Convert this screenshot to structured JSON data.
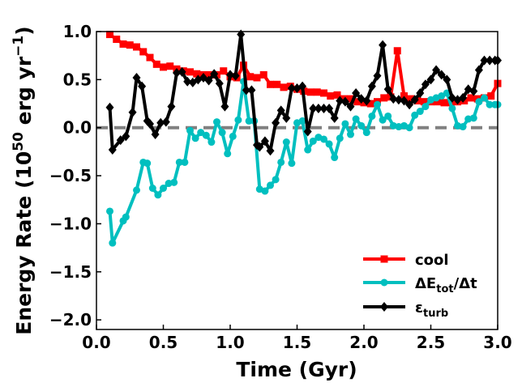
{
  "chart_data": {
    "type": "line",
    "xlabel": "Time (Gyr)",
    "ylabel_main": "Energy Rate (10",
    "ylabel_exp": "50",
    "ylabel_mid": " erg yr",
    "ylabel_exp2": "−1",
    "ylabel_end": ")",
    "xlim": [
      0.0,
      3.0
    ],
    "ylim": [
      -2.1,
      1.0
    ],
    "xticks": [
      0.0,
      0.5,
      1.0,
      1.5,
      2.0,
      2.5,
      3.0
    ],
    "xtick_labels": [
      "0.0",
      "0.5",
      "1.0",
      "1.5",
      "2.0",
      "2.5",
      "3.0"
    ],
    "yticks": [
      1.0,
      0.5,
      0.0,
      -0.5,
      -1.0,
      -1.5,
      -2.0
    ],
    "ytick_labels": [
      "1.0",
      "0.5",
      "0.0",
      "−0.5",
      "−1.0",
      "−1.5",
      "−2.0"
    ],
    "zero_line": {
      "y": 0.0,
      "color": "#808080",
      "style": "dashed"
    },
    "legend_position": "lower-right",
    "series": [
      {
        "name": "cool",
        "label_main": "cool",
        "label_sub": "",
        "color": "#ff0000",
        "marker": "square",
        "x": [
          0.1,
          0.15,
          0.2,
          0.25,
          0.3,
          0.35,
          0.4,
          0.45,
          0.5,
          0.55,
          0.6,
          0.65,
          0.7,
          0.75,
          0.8,
          0.85,
          0.9,
          0.95,
          1.0,
          1.05,
          1.1,
          1.15,
          1.2,
          1.25,
          1.3,
          1.35,
          1.4,
          1.45,
          1.5,
          1.55,
          1.6,
          1.65,
          1.7,
          1.75,
          1.8,
          1.85,
          1.9,
          1.95,
          2.0,
          2.05,
          2.1,
          2.15,
          2.2,
          2.25,
          2.3,
          2.35,
          2.4,
          2.45,
          2.5,
          2.55,
          2.6,
          2.65,
          2.7,
          2.75,
          2.8,
          2.85,
          2.9,
          2.95,
          3.0
        ],
        "y": [
          0.97,
          0.92,
          0.87,
          0.86,
          0.84,
          0.79,
          0.73,
          0.66,
          0.63,
          0.64,
          0.61,
          0.59,
          0.58,
          0.56,
          0.55,
          0.55,
          0.55,
          0.59,
          0.53,
          0.52,
          0.65,
          0.53,
          0.52,
          0.55,
          0.45,
          0.45,
          0.42,
          0.43,
          0.4,
          0.38,
          0.37,
          0.37,
          0.36,
          0.33,
          0.34,
          0.3,
          0.3,
          0.27,
          0.26,
          0.25,
          0.27,
          0.31,
          0.32,
          0.8,
          0.33,
          0.3,
          0.28,
          0.27,
          0.27,
          0.27,
          0.26,
          0.26,
          0.27,
          0.28,
          0.31,
          0.3,
          0.31,
          0.33,
          0.46
        ]
      },
      {
        "name": "dE_tot_dt",
        "label_main": "ΔE",
        "label_sub": "tot",
        "label_mid": "/Δt",
        "color": "#00bfbf",
        "marker": "circle",
        "x": [
          0.1,
          0.12,
          0.2,
          0.22,
          0.3,
          0.35,
          0.38,
          0.42,
          0.46,
          0.5,
          0.54,
          0.58,
          0.62,
          0.66,
          0.7,
          0.74,
          0.78,
          0.82,
          0.86,
          0.9,
          0.94,
          0.98,
          1.02,
          1.06,
          1.1,
          1.14,
          1.18,
          1.22,
          1.26,
          1.3,
          1.34,
          1.38,
          1.42,
          1.46,
          1.5,
          1.54,
          1.58,
          1.62,
          1.66,
          1.7,
          1.74,
          1.78,
          1.82,
          1.86,
          1.9,
          1.94,
          1.98,
          2.02,
          2.06,
          2.1,
          2.14,
          2.18,
          2.22,
          2.26,
          2.3,
          2.34,
          2.38,
          2.42,
          2.46,
          2.5,
          2.54,
          2.58,
          2.62,
          2.66,
          2.7,
          2.74,
          2.78,
          2.82,
          2.86,
          2.9,
          2.94,
          2.98,
          3.0
        ],
        "y": [
          -0.87,
          -1.2,
          -0.97,
          -0.93,
          -0.65,
          -0.36,
          -0.37,
          -0.63,
          -0.7,
          -0.63,
          -0.58,
          -0.57,
          -0.36,
          -0.36,
          -0.03,
          -0.11,
          -0.05,
          -0.08,
          -0.15,
          0.06,
          -0.05,
          -0.27,
          -0.09,
          0.08,
          0.48,
          0.07,
          0.07,
          -0.64,
          -0.66,
          -0.6,
          -0.54,
          -0.36,
          -0.15,
          -0.37,
          0.05,
          0.07,
          -0.23,
          -0.14,
          -0.1,
          -0.12,
          -0.17,
          -0.31,
          -0.11,
          0.04,
          -0.07,
          0.09,
          0.02,
          -0.05,
          0.12,
          0.24,
          0.08,
          0.12,
          0.02,
          0.01,
          0.02,
          0.0,
          0.13,
          0.17,
          0.22,
          0.29,
          0.31,
          0.33,
          0.36,
          0.2,
          0.02,
          0.01,
          0.09,
          0.1,
          0.27,
          0.31,
          0.24,
          0.24,
          0.24
        ]
      },
      {
        "name": "eps_turb",
        "label_main": "ε",
        "label_sub": "turb",
        "label_mid": "",
        "color": "#000000",
        "marker": "diamond",
        "x": [
          0.1,
          0.12,
          0.18,
          0.22,
          0.27,
          0.3,
          0.34,
          0.38,
          0.4,
          0.44,
          0.48,
          0.52,
          0.56,
          0.6,
          0.64,
          0.68,
          0.72,
          0.76,
          0.8,
          0.84,
          0.88,
          0.92,
          0.96,
          1.0,
          1.04,
          1.08,
          1.12,
          1.16,
          1.2,
          1.22,
          1.26,
          1.3,
          1.34,
          1.38,
          1.42,
          1.46,
          1.5,
          1.54,
          1.58,
          1.62,
          1.66,
          1.7,
          1.74,
          1.78,
          1.82,
          1.86,
          1.9,
          1.94,
          1.98,
          2.02,
          2.06,
          2.1,
          2.14,
          2.18,
          2.22,
          2.26,
          2.3,
          2.34,
          2.38,
          2.42,
          2.46,
          2.5,
          2.54,
          2.58,
          2.62,
          2.66,
          2.7,
          2.74,
          2.78,
          2.82,
          2.86,
          2.9,
          2.94,
          2.98,
          3.0
        ],
        "y": [
          0.21,
          -0.23,
          -0.13,
          -0.09,
          0.16,
          0.52,
          0.43,
          0.07,
          0.04,
          -0.07,
          0.05,
          0.06,
          0.22,
          0.57,
          0.58,
          0.48,
          0.47,
          0.5,
          0.52,
          0.49,
          0.56,
          0.46,
          0.22,
          0.55,
          0.54,
          0.97,
          0.39,
          0.39,
          -0.18,
          -0.2,
          -0.14,
          -0.24,
          0.05,
          0.18,
          0.1,
          0.41,
          0.41,
          0.43,
          -0.04,
          0.2,
          0.2,
          0.2,
          0.2,
          0.1,
          0.28,
          0.27,
          0.22,
          0.36,
          0.3,
          0.28,
          0.43,
          0.54,
          0.86,
          0.4,
          0.3,
          0.29,
          0.28,
          0.24,
          0.29,
          0.36,
          0.45,
          0.5,
          0.6,
          0.55,
          0.5,
          0.31,
          0.29,
          0.31,
          0.4,
          0.38,
          0.6,
          0.7,
          0.7,
          0.7,
          0.7
        ]
      }
    ]
  }
}
